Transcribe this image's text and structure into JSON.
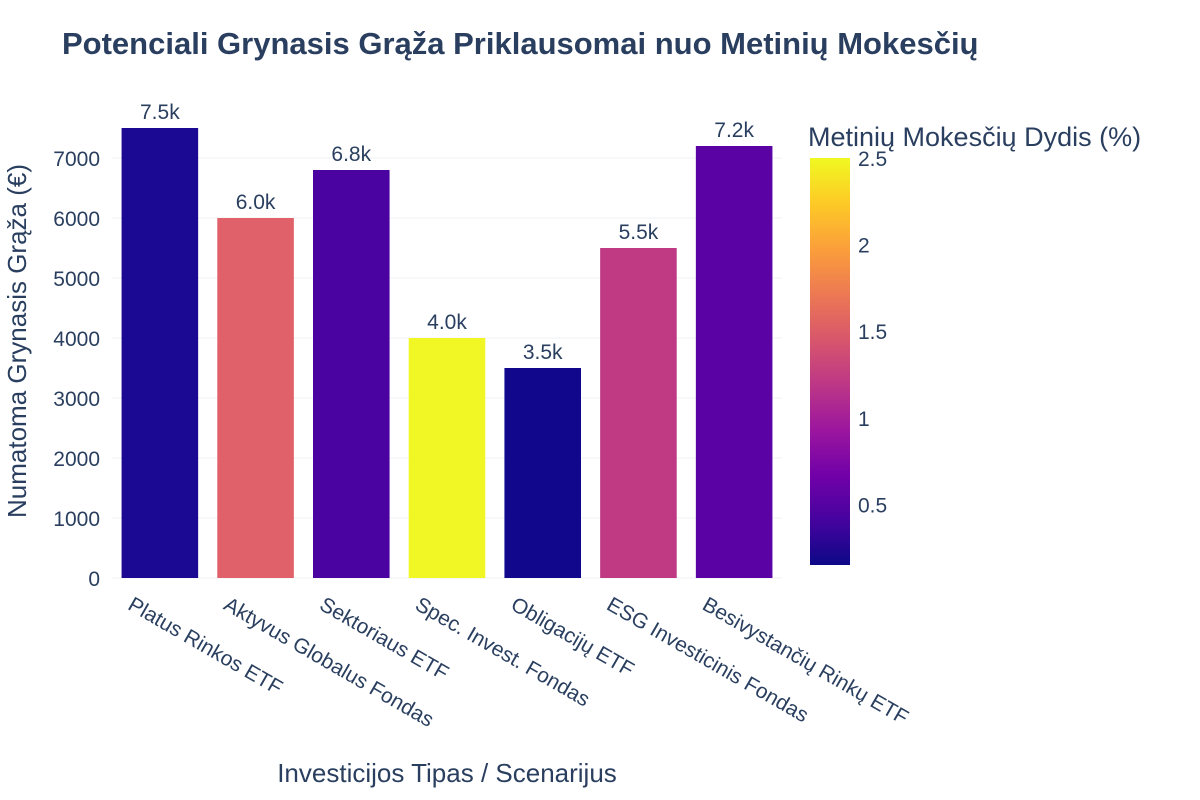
{
  "chart_data": {
    "type": "bar",
    "title": "Potenciali Grynasis Grąža Priklausomai nuo Metinių Mokesčių",
    "xlabel": "Investicijos Tipas / Scenarijus",
    "ylabel": "Numatoma Grynasis Grąža (€)",
    "categories": [
      "Platus Rinkos ETF",
      "Aktyvus Globalus Fondas",
      "Sektoriaus ETF",
      "Spec. Invest. Fondas",
      "Obligacijų ETF",
      "ESG Investicinis Fondas",
      "Besivystančių Rinkų ETF"
    ],
    "values": [
      7500,
      6000,
      6800,
      4000,
      3500,
      5500,
      7200
    ],
    "value_labels": [
      "7.5k",
      "6.0k",
      "6.8k",
      "4.0k",
      "3.5k",
      "5.5k",
      "7.2k"
    ],
    "colors": [
      "#1b0893",
      "#e0616a",
      "#4a03a0",
      "#f1f725",
      "#10078d",
      "#bf3a82",
      "#5a02a4"
    ],
    "ylim": [
      0,
      7800
    ],
    "yticks": [
      0,
      1000,
      2000,
      3000,
      4000,
      5000,
      6000,
      7000
    ],
    "ytick_labels": [
      "0",
      "1000",
      "2000",
      "3000",
      "4000",
      "5000",
      "6000",
      "7000"
    ],
    "colorbar": {
      "title": "Metinių Mokesčių Dydis (%)",
      "range": [
        0.15,
        2.5
      ],
      "ticks": [
        0.5,
        1,
        1.5,
        2,
        2.5
      ],
      "tick_labels": [
        "0.5",
        "1",
        "1.5",
        "2",
        "2.5"
      ],
      "colorscale": [
        "#0d0887",
        "#46039f",
        "#7201a8",
        "#9c179e",
        "#bd3786",
        "#d8576b",
        "#ed7953",
        "#fb9f3a",
        "#fdca26",
        "#f0f921"
      ]
    }
  }
}
